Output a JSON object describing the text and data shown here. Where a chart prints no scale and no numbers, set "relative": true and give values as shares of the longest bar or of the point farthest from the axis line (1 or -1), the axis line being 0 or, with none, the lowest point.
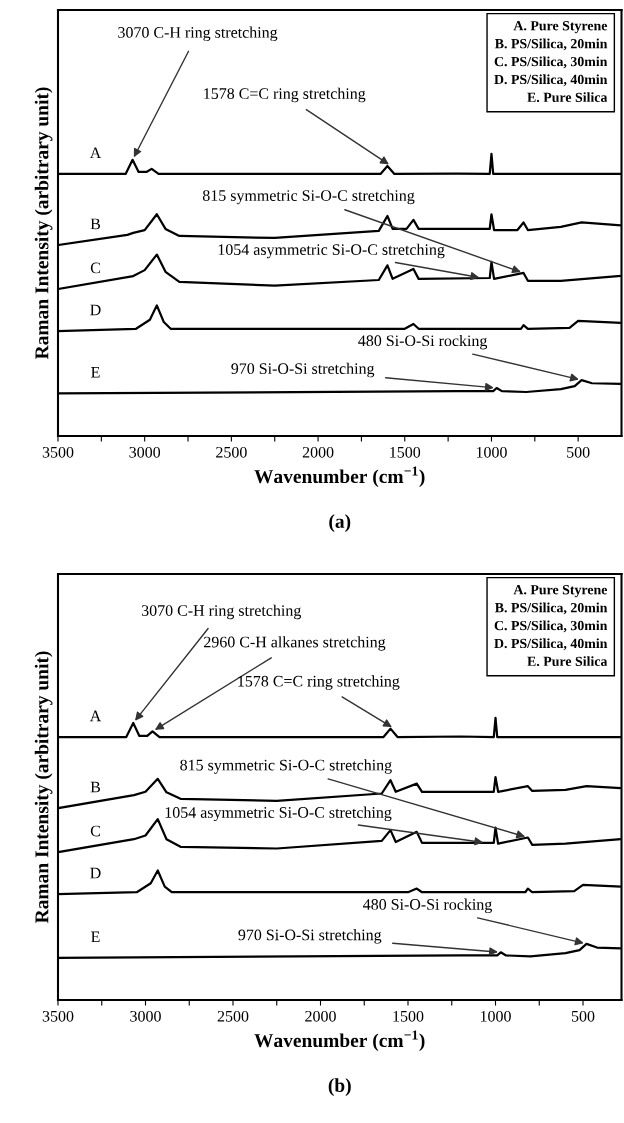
{
  "chart_data": [
    {
      "type": "line",
      "title": "(a)",
      "xlabel": "Wavenumber (cm$^{−1}$)",
      "ylabel": "Raman Intensity (arbitrary unit)",
      "relative": true,
      "tick_labels": "x",
      "xlim": [
        3500,
        250
      ],
      "xticks": [
        3500,
        {
          "value": 3250,
          "label": null
        },
        3000,
        {
          "value": 2750,
          "label": null
        },
        2500,
        {
          "value": 2250,
          "label": null
        },
        2000,
        {
          "value": 1750,
          "label": null
        },
        1500,
        {
          "value": 1250,
          "label": null
        },
        1000,
        {
          "value": 750,
          "label": null
        },
        500
      ],
      "series": [
        {
          "name": "A",
          "color": "#000000",
          "x": [
            3500,
            3110,
            3070,
            3035,
            2990,
            2960,
            2920,
            1640,
            1600,
            1560,
            1200,
            1010,
            1000,
            990,
            260
          ],
          "values": [
            0.929,
            0.929,
            0.979,
            0.936,
            0.936,
            0.947,
            0.929,
            0.929,
            0.957,
            0.929,
            0.93,
            0.929,
            1.0,
            0.929,
            0.929
          ]
        },
        {
          "name": "B",
          "color": "#000000",
          "x": [
            3500,
            3100,
            3066,
            3000,
            2930,
            2880,
            2800,
            2250,
            1650,
            1600,
            1570,
            1490,
            1450,
            1420,
            1200,
            1010,
            1000,
            985,
            850,
            815,
            790,
            600,
            480,
            260
          ],
          "values": [
            0.677,
            0.713,
            0.72,
            0.73,
            0.786,
            0.734,
            0.709,
            0.702,
            0.727,
            0.78,
            0.734,
            0.734,
            0.766,
            0.734,
            0.734,
            0.734,
            0.786,
            0.73,
            0.73,
            0.757,
            0.73,
            0.741,
            0.757,
            0.747
          ]
        },
        {
          "name": "C",
          "color": "#000000",
          "x": [
            3500,
            3066,
            3000,
            2930,
            2880,
            2800,
            2250,
            1650,
            1600,
            1570,
            1450,
            1420,
            1010,
            1000,
            985,
            815,
            790,
            600,
            260
          ],
          "values": [
            0.521,
            0.567,
            0.588,
            0.643,
            0.582,
            0.546,
            0.533,
            0.553,
            0.605,
            0.557,
            0.592,
            0.557,
            0.56,
            0.617,
            0.557,
            0.578,
            0.55,
            0.55,
            0.567
          ]
        },
        {
          "name": "D",
          "color": "#000000",
          "x": [
            3500,
            3050,
            2970,
            2930,
            2890,
            2850,
            1500,
            1450,
            1420,
            830,
            815,
            790,
            550,
            500,
            260
          ],
          "values": [
            0.372,
            0.38,
            0.412,
            0.463,
            0.404,
            0.38,
            0.38,
            0.397,
            0.38,
            0.38,
            0.393,
            0.38,
            0.383,
            0.408,
            0.401
          ]
        },
        {
          "name": "E",
          "color": "#000000",
          "x": [
            3500,
            1200,
            990,
            970,
            940,
            800,
            600,
            520,
            480,
            420,
            260
          ],
          "values": [
            0.151,
            0.159,
            0.159,
            0.17,
            0.159,
            0.156,
            0.166,
            0.177,
            0.198,
            0.187,
            0.185
          ]
        }
      ],
      "annotations": [
        "A. Pure Styrene",
        "B. PS/Silica, 20min",
        "C. PS/Silica, 30min",
        "D. PS/Silica, 40min",
        "E. Pure Silica",
        {
          "text": "3070 C-H ring stretching",
          "x": 3070,
          "y": 0.979
        },
        {
          "text": "1578 C=C ring stretching",
          "x": 1578,
          "y": 0.957
        },
        {
          "text": "815 symmetric Si-O-C stretching",
          "x": 815,
          "y": 0.578
        },
        {
          "text": "1054 asymmetric Si-O-C stretching",
          "x": 1054,
          "y": 0.56
        },
        {
          "text": "480 Si-O-Si rocking",
          "x": 480,
          "y": 0.198
        },
        {
          "text": "970 Si-O-Si stretching",
          "x": 970,
          "y": 0.17
        }
      ]
    },
    {
      "type": "line",
      "title": "(b)",
      "xlabel": "Wavenumber (cm$^{−1}$)",
      "ylabel": "Raman Intensity (arbitrary unit)",
      "relative": true,
      "tick_labels": "x",
      "xlim": [
        3500,
        280
      ],
      "xticks": [
        3500,
        {
          "value": 3250,
          "label": null
        },
        3000,
        {
          "value": 2750,
          "label": null
        },
        2500,
        {
          "value": 2250,
          "label": null
        },
        2000,
        {
          "value": 1750,
          "label": null
        },
        1500,
        {
          "value": 1250,
          "label": null
        },
        1000,
        {
          "value": 750,
          "label": null
        },
        500
      ],
      "series": [
        {
          "name": "A",
          "color": "#000000",
          "x": [
            3500,
            3110,
            3070,
            3035,
            2990,
            2960,
            2920,
            1640,
            1600,
            1560,
            1200,
            1010,
            1000,
            990,
            290
          ],
          "values": [
            0.932,
            0.932,
            0.982,
            0.936,
            0.936,
            0.952,
            0.932,
            0.932,
            0.962,
            0.932,
            0.934,
            0.932,
            1.0,
            0.932,
            0.932
          ]
        },
        {
          "name": "B",
          "color": "#000000",
          "x": [
            3500,
            3066,
            3000,
            2930,
            2880,
            2800,
            2250,
            1650,
            1600,
            1570,
            1450,
            1420,
            1010,
            1000,
            985,
            815,
            790,
            600,
            480,
            290
          ],
          "values": [
            0.68,
            0.726,
            0.738,
            0.784,
            0.736,
            0.713,
            0.706,
            0.732,
            0.779,
            0.738,
            0.767,
            0.738,
            0.738,
            0.79,
            0.738,
            0.758,
            0.741,
            0.745,
            0.758,
            0.751
          ]
        },
        {
          "name": "C",
          "color": "#000000",
          "x": [
            3500,
            3066,
            3000,
            2930,
            2880,
            2800,
            2250,
            1650,
            1600,
            1570,
            1450,
            1420,
            1010,
            1000,
            985,
            815,
            790,
            600,
            290
          ],
          "values": [
            0.524,
            0.57,
            0.583,
            0.641,
            0.57,
            0.543,
            0.537,
            0.564,
            0.602,
            0.56,
            0.596,
            0.557,
            0.557,
            0.611,
            0.554,
            0.576,
            0.55,
            0.554,
            0.57
          ]
        },
        {
          "name": "D",
          "color": "#000000",
          "x": [
            3500,
            3050,
            2970,
            2930,
            2890,
            2850,
            1500,
            1450,
            1420,
            830,
            815,
            790,
            550,
            500,
            290
          ],
          "values": [
            0.375,
            0.382,
            0.414,
            0.459,
            0.402,
            0.382,
            0.382,
            0.395,
            0.382,
            0.382,
            0.395,
            0.382,
            0.386,
            0.408,
            0.402
          ]
        },
        {
          "name": "E",
          "color": "#000000",
          "x": [
            3500,
            1200,
            990,
            970,
            940,
            800,
            600,
            520,
            480,
            420,
            290
          ],
          "values": [
            0.149,
            0.158,
            0.158,
            0.169,
            0.158,
            0.155,
            0.166,
            0.177,
            0.199,
            0.186,
            0.183
          ]
        }
      ],
      "annotations": [
        "A. Pure Styrene",
        "B. PS/Silica, 20min",
        "C. PS/Silica, 30min",
        "D. PS/Silica, 40min",
        "E. Pure Silica",
        {
          "text": "3070 C-H ring stretching",
          "x": 3070,
          "y": 0.982
        },
        {
          "text": "2960 C-H alkanes stretching",
          "x": 2960,
          "y": 0.952
        },
        {
          "text": "1578 C=C ring stretching",
          "x": 1578,
          "y": 0.962
        },
        {
          "text": "815 symmetric Si-O-C stretching",
          "x": 815,
          "y": 0.576
        },
        {
          "text": "1054 asymmetric Si-O-C stretching",
          "x": 1054,
          "y": 0.557
        },
        {
          "text": "480 Si-O-Si rocking",
          "x": 480,
          "y": 0.199
        },
        {
          "text": "970 Si-O-Si stretching",
          "x": 970,
          "y": 0.169
        }
      ]
    }
  ]
}
